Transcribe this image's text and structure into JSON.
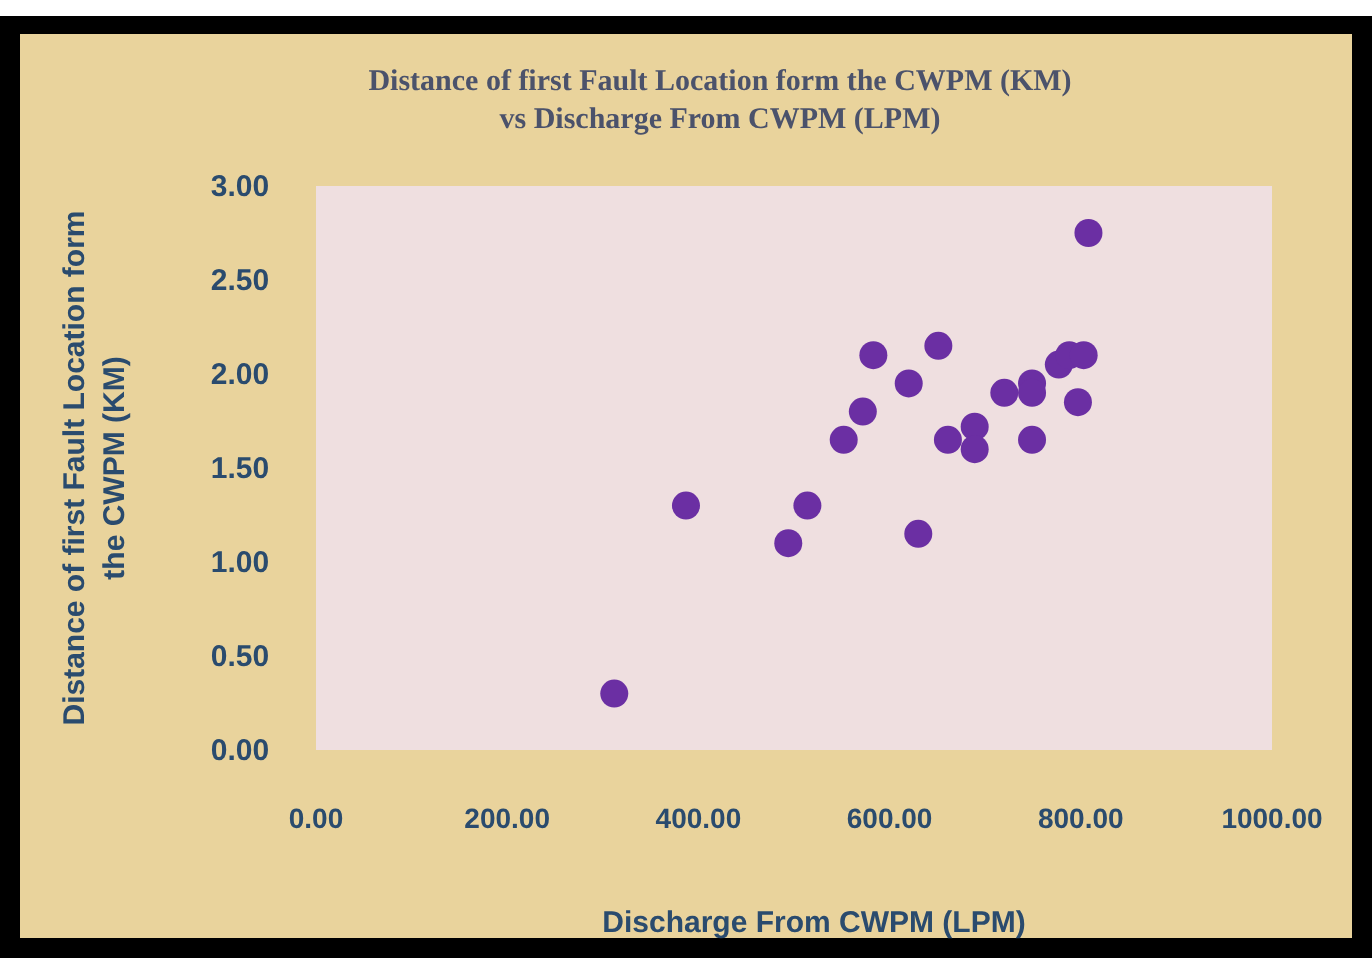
{
  "chart_data": {
    "type": "scatter",
    "title": "Distance of first Fault Location form the CWPM (KM)\nvs Discharge From CWPM (LPM)",
    "xlabel": "Discharge From CWPM (LPM)",
    "ylabel": "Distance of first Fault Location form\nthe CWPM (KM)",
    "x": [
      312,
      387,
      494,
      514,
      552,
      572,
      583,
      620,
      630,
      651,
      661,
      689,
      689,
      720,
      749,
      749,
      749,
      777,
      788,
      803,
      797,
      808
    ],
    "values": [
      0.3,
      1.3,
      1.1,
      1.3,
      1.65,
      1.8,
      2.1,
      1.95,
      1.15,
      2.15,
      1.65,
      1.72,
      1.6,
      1.9,
      1.95,
      1.9,
      1.65,
      2.05,
      2.1,
      2.1,
      1.85,
      2.75
    ],
    "color": "#6b2fa3",
    "marker": "circle",
    "grid": false,
    "xlim": [
      0,
      1000
    ],
    "xticks": [
      {
        "value": 0,
        "label": "0.00"
      },
      {
        "value": 200,
        "label": "200.00"
      },
      {
        "value": 400,
        "label": "400.00"
      },
      {
        "value": 600,
        "label": "600.00"
      },
      {
        "value": 800,
        "label": "800.00"
      },
      {
        "value": 1000,
        "label": "1000.00"
      }
    ],
    "ylim": [
      0,
      3
    ],
    "yticks": [
      {
        "value": 0,
        "label": "0.00"
      },
      {
        "value": 0.5,
        "label": "0.50"
      },
      {
        "value": 1,
        "label": "1.00"
      },
      {
        "value": 1.5,
        "label": "1.50"
      },
      {
        "value": 2,
        "label": "2.00"
      },
      {
        "value": 2.5,
        "label": "2.50"
      },
      {
        "value": 3,
        "label": "3.00"
      }
    ]
  }
}
